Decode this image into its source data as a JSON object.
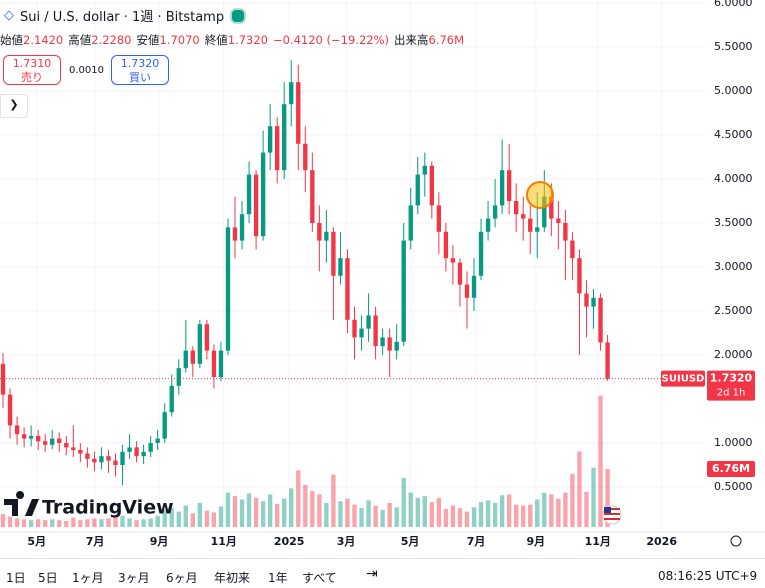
{
  "chart_data": {
    "type": "candlestick",
    "title": "Sui / U.S. dollar · 1週 · Bitstamp",
    "readout": [
      {
        "label": "始値",
        "value": "2.1420"
      },
      {
        "label": "高値",
        "value": "2.2280"
      },
      {
        "label": "安値",
        "value": "1.7070"
      },
      {
        "label": "終値",
        "value": "1.7320"
      }
    ],
    "change": "−0.4120 (−19.22%)",
    "volume_readout": {
      "label": "出来高",
      "value": "6.76M"
    },
    "sell": {
      "price": "1.7310",
      "label": "売り"
    },
    "spread": "0.0010",
    "buy": {
      "price": "1.7320",
      "label": "買い"
    },
    "symbol_tag": {
      "symbol": "SUIUSD",
      "price": "1.7320",
      "countdown": "2d 1h"
    },
    "volume_tag": "6.76M",
    "logo": "TradingView",
    "up_color": "#089981",
    "down_color": "#f23645",
    "grid": true,
    "open": [
      1.9,
      1.55,
      1.2,
      1.1,
      1.05,
      1.08,
      1.02,
      0.98,
      1.05,
      1.0,
      0.95,
      0.92,
      0.88,
      0.82,
      0.78,
      0.85,
      0.8,
      0.75,
      0.9,
      0.95,
      0.85,
      0.9,
      1.0,
      1.05,
      1.35,
      1.65,
      1.85,
      2.05,
      1.9,
      2.35,
      2.05,
      1.75,
      2.05,
      3.45,
      3.3,
      3.6,
      4.05,
      3.35,
      4.3,
      4.6,
      4.1,
      4.85,
      5.1,
      4.4,
      4.1,
      3.5,
      3.3,
      3.4,
      2.9,
      3.1,
      2.4,
      2.2,
      2.3,
      2.45,
      2.1,
      2.2,
      2.05,
      2.15,
      3.3,
      3.7,
      4.05,
      4.15,
      3.7,
      3.4,
      3.1,
      3.05,
      2.8,
      2.65,
      2.9,
      3.4,
      3.55,
      3.7,
      4.1,
      3.75,
      3.6,
      3.55,
      3.4,
      3.45,
      3.8,
      3.55,
      3.5,
      3.3,
      3.1,
      2.7,
      2.55,
      2.65,
      2.142
    ],
    "high": [
      2.02,
      1.62,
      1.3,
      1.18,
      1.2,
      1.15,
      1.1,
      1.15,
      1.12,
      1.08,
      1.2,
      1.0,
      0.95,
      0.9,
      0.95,
      0.92,
      0.88,
      0.98,
      1.1,
      1.02,
      0.98,
      1.08,
      1.15,
      1.45,
      1.78,
      1.95,
      2.4,
      2.1,
      2.4,
      2.4,
      2.12,
      2.15,
      3.55,
      3.8,
      3.75,
      4.2,
      4.1,
      4.55,
      4.85,
      4.7,
      5.1,
      5.35,
      5.3,
      4.6,
      4.3,
      3.7,
      3.65,
      3.45,
      3.4,
      3.2,
      2.55,
      2.45,
      2.7,
      2.55,
      2.3,
      2.3,
      2.35,
      3.5,
      3.9,
      4.25,
      4.3,
      4.2,
      3.85,
      3.5,
      3.25,
      3.1,
      2.95,
      3.1,
      3.55,
      3.75,
      4.0,
      4.45,
      4.4,
      3.95,
      3.8,
      3.7,
      3.85,
      4.1,
      3.95,
      3.75,
      3.65,
      3.4,
      3.2,
      2.85,
      2.75,
      2.7,
      2.228
    ],
    "low": [
      1.4,
      1.05,
      0.98,
      0.95,
      0.96,
      0.92,
      0.9,
      0.93,
      0.9,
      0.86,
      0.84,
      0.78,
      0.72,
      0.68,
      0.7,
      0.66,
      0.62,
      0.52,
      0.82,
      0.78,
      0.76,
      0.84,
      0.92,
      1.0,
      1.3,
      1.55,
      1.8,
      1.75,
      1.85,
      1.95,
      1.62,
      1.7,
      2.0,
      3.1,
      3.2,
      3.5,
      3.2,
      3.3,
      4.1,
      3.95,
      4.0,
      4.6,
      4.1,
      3.85,
      3.4,
      2.95,
      3.05,
      2.4,
      2.8,
      2.25,
      1.95,
      2.05,
      2.15,
      1.95,
      2.0,
      1.75,
      1.95,
      2.1,
      3.2,
      3.6,
      3.8,
      3.55,
      3.15,
      2.95,
      2.8,
      2.55,
      2.3,
      2.5,
      2.85,
      3.3,
      3.45,
      3.6,
      3.6,
      3.4,
      3.3,
      3.15,
      3.1,
      3.4,
      3.35,
      3.2,
      2.85,
      2.85,
      2.0,
      2.2,
      2.3,
      2.05,
      1.707
    ],
    "close": [
      1.55,
      1.2,
      1.1,
      1.05,
      1.08,
      1.02,
      0.98,
      1.05,
      1.0,
      0.95,
      0.92,
      0.88,
      0.82,
      0.78,
      0.85,
      0.8,
      0.75,
      0.9,
      0.95,
      0.85,
      0.9,
      1.0,
      1.05,
      1.35,
      1.65,
      1.85,
      2.05,
      1.9,
      2.35,
      2.05,
      1.75,
      2.05,
      3.45,
      3.3,
      3.6,
      4.05,
      3.35,
      4.3,
      4.6,
      4.1,
      4.85,
      5.1,
      4.4,
      4.1,
      3.5,
      3.3,
      3.4,
      2.9,
      3.1,
      2.4,
      2.2,
      2.3,
      2.45,
      2.1,
      2.2,
      2.05,
      2.15,
      3.3,
      3.7,
      4.05,
      4.15,
      3.7,
      3.4,
      3.1,
      3.05,
      2.8,
      2.65,
      2.9,
      3.4,
      3.55,
      3.7,
      4.1,
      3.75,
      3.6,
      3.55,
      3.4,
      3.45,
      3.8,
      3.55,
      3.5,
      3.3,
      3.1,
      2.7,
      2.55,
      2.65,
      2.142,
      1.732
    ],
    "volume": [
      1.5,
      1.2,
      1.0,
      0.9,
      0.8,
      0.9,
      0.8,
      0.9,
      0.8,
      0.7,
      1.1,
      0.8,
      0.9,
      1.0,
      0.9,
      1.0,
      1.2,
      1.3,
      1.0,
      0.8,
      0.9,
      1.0,
      1.3,
      2.0,
      2.2,
      1.8,
      2.5,
      1.6,
      2.8,
      1.9,
      1.7,
      2.4,
      4.0,
      3.6,
      3.2,
      3.9,
      3.4,
      3.0,
      3.8,
      2.7,
      3.3,
      4.5,
      6.6,
      4.9,
      4.2,
      3.8,
      2.8,
      6.1,
      3.0,
      3.3,
      2.6,
      2.2,
      3.1,
      2.5,
      2.0,
      2.8,
      2.3,
      5.7,
      4.0,
      3.4,
      3.6,
      2.9,
      3.4,
      2.1,
      2.5,
      2.2,
      1.8,
      2.3,
      2.9,
      3.1,
      2.8,
      3.7,
      3.8,
      2.6,
      2.5,
      2.6,
      3.2,
      4.0,
      3.8,
      3.3,
      4.0,
      6.2,
      8.8,
      4.1,
      6.9,
      15.3,
      6.76
    ],
    "volume_lim": [
      0,
      61.4
    ],
    "xlim": [
      -0.43,
      99.86
    ],
    "xticks": [
      {
        "value": 4.8,
        "label": "5月"
      },
      {
        "value": 13.1,
        "label": "7月"
      },
      {
        "value": 22.2,
        "label": "9月"
      },
      {
        "value": 31.4,
        "label": "11月"
      },
      {
        "value": 40.7,
        "label": "2025"
      },
      {
        "value": 48.8,
        "label": "3月"
      },
      {
        "value": 57.9,
        "label": "5月"
      },
      {
        "value": 67.3,
        "label": "7月"
      },
      {
        "value": 75.8,
        "label": "9月"
      },
      {
        "value": 84.6,
        "label": "11月"
      },
      {
        "value": 93.7,
        "label": "2026"
      }
    ],
    "ylim": [
      0.034,
      6.034
    ],
    "yticks": [
      {
        "value": 0.5,
        "label": "0.5000"
      },
      {
        "value": 1,
        "label": "1.0000"
      },
      {
        "value": 2,
        "label": "2.0000"
      },
      {
        "value": 2.5,
        "label": "2.5000"
      },
      {
        "value": 3,
        "label": "3.0000"
      },
      {
        "value": 3.5,
        "label": "3.5000"
      },
      {
        "value": 4,
        "label": "4.0000"
      },
      {
        "value": 4.5,
        "label": "4.5000"
      },
      {
        "value": 5,
        "label": "5.0000"
      },
      {
        "value": 5.5,
        "label": "5.5000"
      },
      {
        "value": 6,
        "label": "6.0000"
      }
    ],
    "ranges": [
      "1日",
      "5日",
      "1ヶ月",
      "3ヶ月",
      "6ヶ月",
      "年初来",
      "1年",
      "すべて"
    ],
    "clock": "08:16:25 UTC+9"
  }
}
